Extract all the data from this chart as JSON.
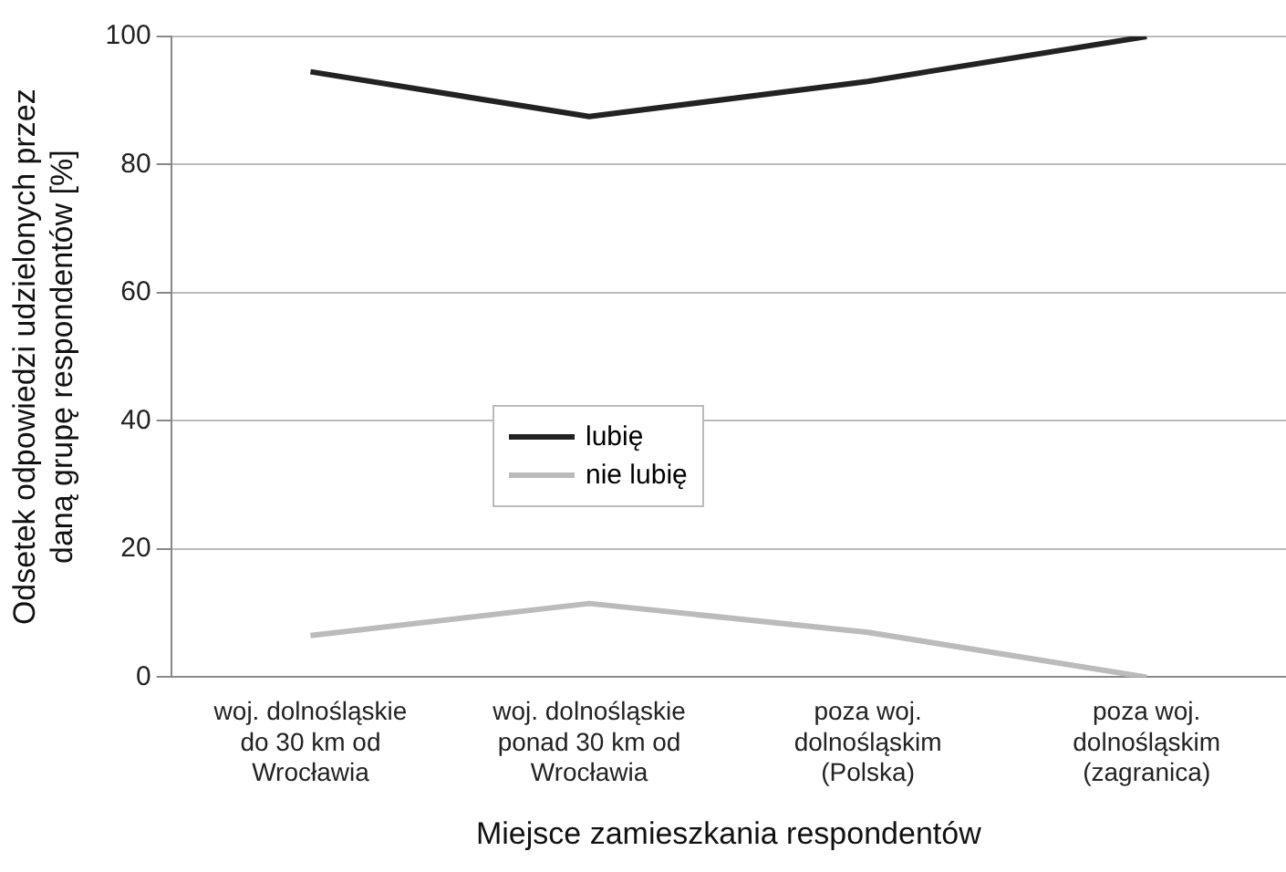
{
  "chart_data": {
    "type": "line",
    "xlabel": "Miejsce zamieszkania respondentów",
    "ylabel": "Odsetek odpowiedzi udzielonych przez daną grupę respondentów [%]",
    "categories": [
      "woj. dolnośląskie do 30 km od Wrocławia",
      "woj. dolnośląskie ponad 30 km od Wrocławia",
      "poza woj. dolnośląskim (Polska)",
      "poza woj. dolnośląskim (zagranica)"
    ],
    "series": [
      {
        "name": "lubię",
        "color": "#222222",
        "values": [
          94.5,
          87.5,
          93,
          100
        ]
      },
      {
        "name": "nie lubię",
        "color": "#bbbbbb",
        "values": [
          6.5,
          11.5,
          7,
          0
        ]
      }
    ],
    "ylim": [
      0,
      100
    ],
    "yticks": [
      0,
      20,
      40,
      60,
      80,
      100
    ],
    "grid": "y",
    "legend": "center",
    "marker": "none",
    "line_style": "solid"
  }
}
